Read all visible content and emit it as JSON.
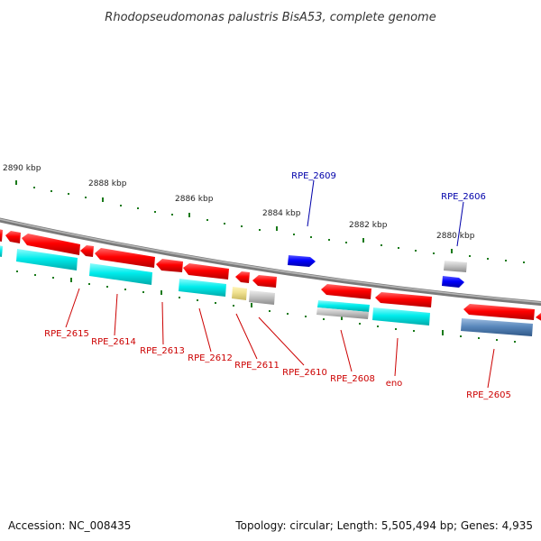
{
  "title": "Rhodopseudomonas palustris BisA53, complete genome",
  "accession": "Accession: NC_008435",
  "topology": "Topology: circular; Length: 5,505,494 bp; Genes: 4,935",
  "colors": {
    "backbone": "#8a8a8a",
    "red": "#ff0000",
    "blue": "#0000ff",
    "cyan": "#00e5e5",
    "gray": "#bdbdbd",
    "yellow": "#eedd88",
    "steel": "#4f7fb4",
    "tick": "#1a7a1a",
    "label_red": "#cc0000",
    "label_blue": "#0000aa"
  },
  "ticks": [
    {
      "label": "2890 kbp"
    },
    {
      "label": "2888 kbp"
    },
    {
      "label": "2886 kbp"
    },
    {
      "label": "2884 kbp"
    },
    {
      "label": "2882 kbp"
    },
    {
      "label": "2880 kbp"
    }
  ],
  "labels": [
    {
      "text": "RPE_2609",
      "tone": "blue"
    },
    {
      "text": "RPE_2606",
      "tone": "blue"
    },
    {
      "text": "RPE_2615",
      "tone": "red"
    },
    {
      "text": "RPE_2614",
      "tone": "red"
    },
    {
      "text": "RPE_2613",
      "tone": "red"
    },
    {
      "text": "RPE_2612",
      "tone": "red"
    },
    {
      "text": "RPE_2611",
      "tone": "red"
    },
    {
      "text": "RPE_2610",
      "tone": "red"
    },
    {
      "text": "RPE_2608",
      "tone": "red"
    },
    {
      "text": "eno",
      "tone": "red"
    },
    {
      "text": "RPE_2605",
      "tone": "red"
    }
  ]
}
